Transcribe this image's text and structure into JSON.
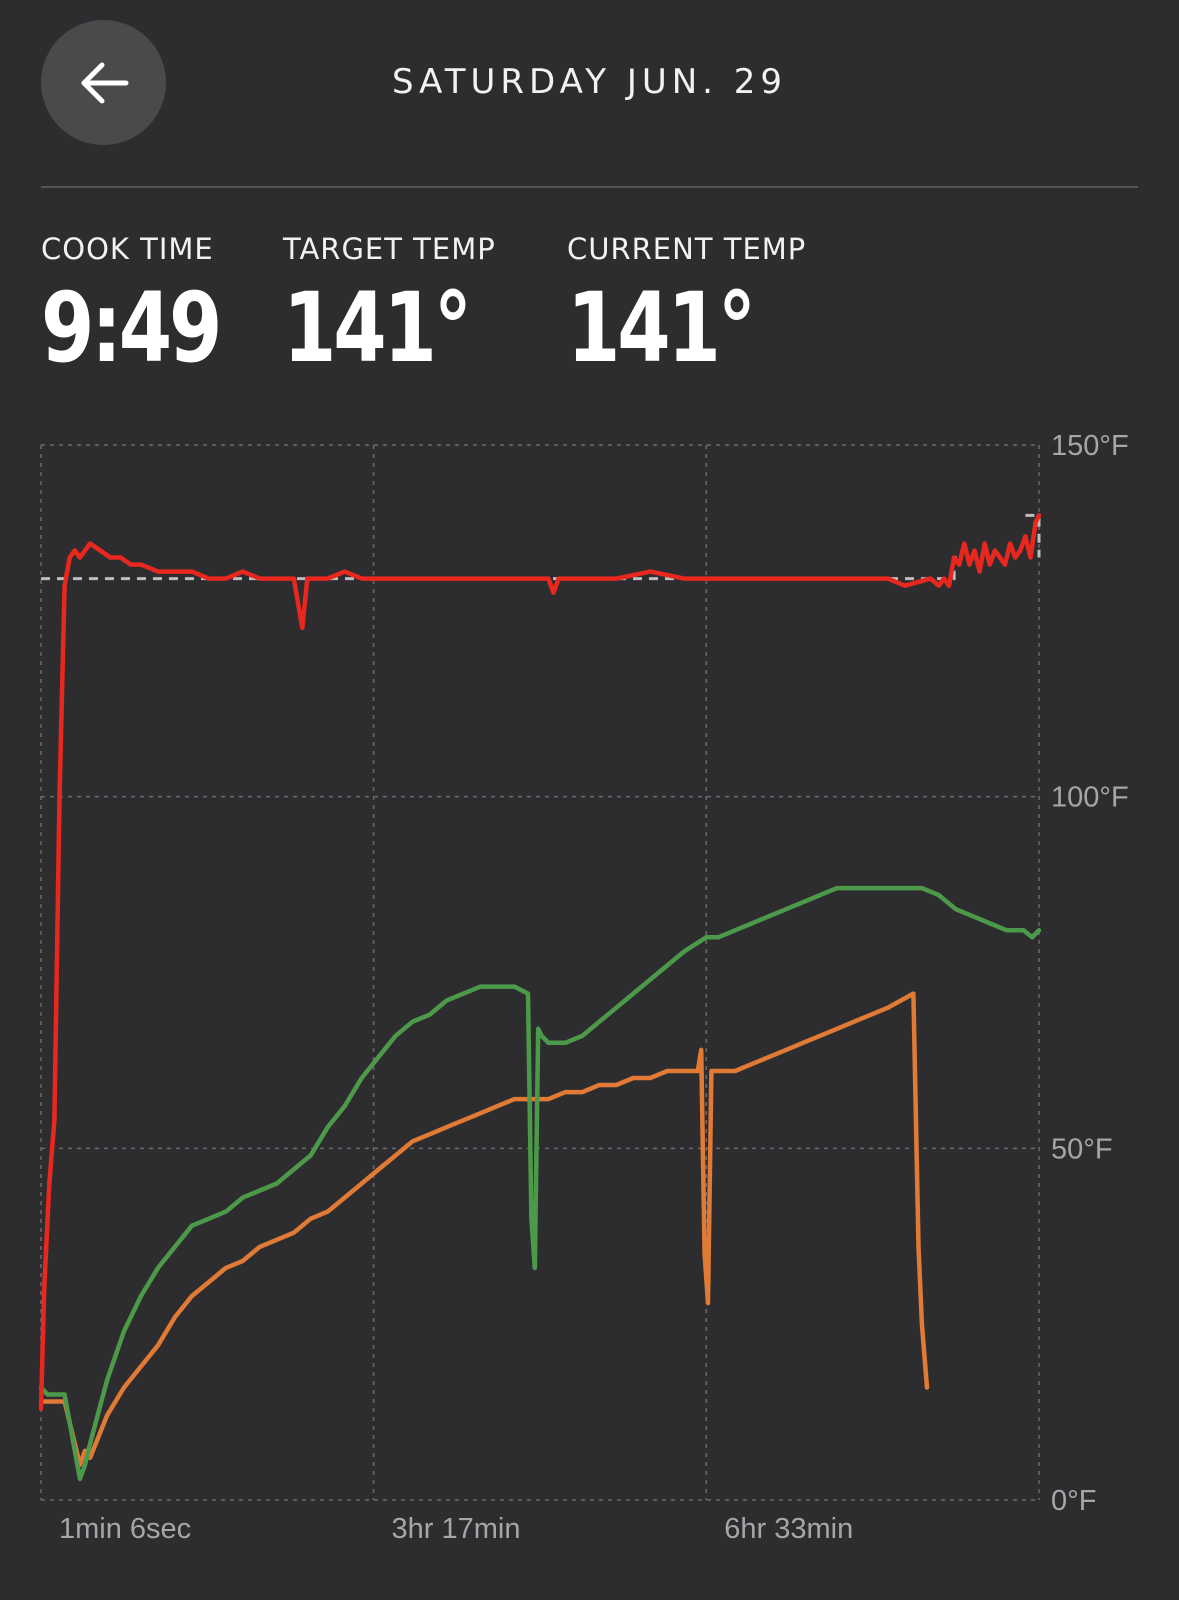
{
  "header": {
    "title": "SATURDAY  JUN.  29",
    "back_icon": "arrow-left-icon"
  },
  "stats": [
    {
      "label": "COOK TIME",
      "value": "9:49"
    },
    {
      "label": "TARGET TEMP",
      "value": "141°"
    },
    {
      "label": "CURRENT TEMP",
      "value": "141°"
    }
  ],
  "colors": {
    "background": "#2d2d30",
    "ambient": "#e8281f",
    "probe_green": "#4c9a49",
    "probe_orange": "#e07a35",
    "target_line": "#bdbdbd",
    "grid": "#6b6b6e"
  },
  "chart_data": {
    "type": "line",
    "x_unit": "minutes",
    "x_tick_labels": [
      "1min 6sec",
      "3hr 17min",
      "6hr 33min"
    ],
    "x_ticks_minutes": [
      1.1,
      197,
      393
    ],
    "xlim": [
      1.1,
      589
    ],
    "y_tick_labels": [
      "150°F",
      "100°F",
      "50°F",
      "0°F"
    ],
    "y_ticks": [
      150,
      100,
      50,
      0
    ],
    "ylim": [
      0,
      150
    ],
    "grid": true,
    "target": {
      "y": 131,
      "step_x": 539,
      "step_y": 140
    },
    "series": [
      {
        "color": "#e8281f",
        "x": [
          1.1,
          3,
          6,
          9,
          12,
          15,
          18,
          21,
          24,
          27,
          30,
          36,
          42,
          48,
          54,
          60,
          70,
          80,
          90,
          100,
          110,
          120,
          130,
          140,
          150,
          155,
          158,
          161,
          170,
          180,
          190,
          197,
          210,
          230,
          260,
          290,
          300,
          303,
          306,
          320,
          340,
          360,
          380,
          393,
          410,
          440,
          470,
          500,
          510,
          525,
          530,
          533,
          536,
          539,
          542,
          545,
          548,
          551,
          554,
          557,
          560,
          563,
          566,
          569,
          572,
          575,
          578,
          581,
          584,
          587,
          589
        ],
        "y": [
          13,
          30,
          45,
          54,
          100,
          130,
          134,
          135,
          134,
          135,
          136,
          135,
          134,
          134,
          133,
          133,
          132,
          132,
          132,
          131,
          131,
          132,
          131,
          131,
          131,
          124,
          131,
          131,
          131,
          132,
          131,
          131,
          131,
          131,
          131,
          131,
          131,
          129,
          131,
          131,
          131,
          132,
          131,
          131,
          131,
          131,
          131,
          131,
          130,
          131,
          130,
          131,
          130,
          134,
          133,
          136,
          133,
          135,
          132,
          136,
          133,
          135,
          134,
          133,
          136,
          134,
          135,
          137,
          134,
          139,
          140
        ]
      },
      {
        "color": "#4c9a49",
        "x": [
          1.1,
          5,
          10,
          15,
          24,
          27,
          30,
          40,
          50,
          60,
          70,
          80,
          90,
          100,
          110,
          120,
          130,
          140,
          150,
          160,
          170,
          180,
          190,
          200,
          210,
          220,
          230,
          240,
          250,
          260,
          280,
          288,
          290,
          292,
          294,
          296,
          300,
          310,
          320,
          330,
          340,
          350,
          360,
          370,
          380,
          393,
          400,
          410,
          420,
          430,
          440,
          450,
          460,
          470,
          480,
          490,
          500,
          510,
          520,
          530,
          540,
          550,
          560,
          570,
          580,
          585,
          589
        ],
        "y": [
          16,
          15,
          15,
          15,
          3,
          5,
          8,
          17,
          24,
          29,
          33,
          36,
          39,
          40,
          41,
          43,
          44,
          45,
          47,
          49,
          53,
          56,
          60,
          63,
          66,
          68,
          69,
          71,
          72,
          73,
          73,
          72,
          40,
          33,
          67,
          66,
          65,
          65,
          66,
          68,
          70,
          72,
          74,
          76,
          78,
          80,
          80,
          81,
          82,
          83,
          84,
          85,
          86,
          87,
          87,
          87,
          87,
          87,
          87,
          86,
          84,
          83,
          82,
          81,
          81,
          80,
          81
        ]
      },
      {
        "color": "#e07a35",
        "x": [
          1.1,
          5,
          10,
          15,
          24,
          27,
          30,
          40,
          50,
          60,
          70,
          80,
          90,
          100,
          110,
          120,
          130,
          140,
          150,
          160,
          170,
          180,
          190,
          200,
          210,
          220,
          230,
          240,
          250,
          260,
          270,
          280,
          290,
          300,
          310,
          320,
          330,
          340,
          350,
          360,
          370,
          380,
          388,
          390,
          392,
          394,
          396,
          400,
          410,
          420,
          430,
          440,
          450,
          460,
          470,
          480,
          490,
          500,
          515,
          518,
          520,
          523
        ],
        "y": [
          14,
          14,
          14,
          14,
          5,
          7,
          6,
          12,
          16,
          19,
          22,
          26,
          29,
          31,
          33,
          34,
          36,
          37,
          38,
          40,
          41,
          43,
          45,
          47,
          49,
          51,
          52,
          53,
          54,
          55,
          56,
          57,
          57,
          57,
          58,
          58,
          59,
          59,
          60,
          60,
          61,
          61,
          61,
          64,
          35,
          28,
          61,
          61,
          61,
          62,
          63,
          64,
          65,
          66,
          67,
          68,
          69,
          70,
          72,
          36,
          25,
          16
        ]
      }
    ]
  }
}
